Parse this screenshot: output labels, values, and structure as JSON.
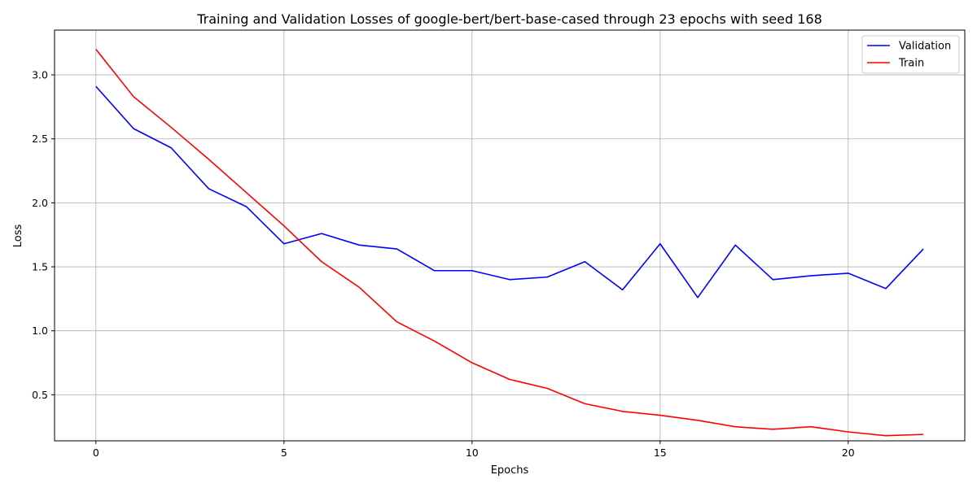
{
  "chart_data": {
    "type": "line",
    "title": "Training and Validation Losses of google-bert/bert-base-cased through 23 epochs with seed 168",
    "xlabel": "Epochs",
    "ylabel": "Loss",
    "xlim": [
      -1.1,
      23.1
    ],
    "ylim": [
      0.14,
      3.35
    ],
    "xticks": [
      0,
      5,
      10,
      15,
      20
    ],
    "yticks": [
      0.5,
      1.0,
      1.5,
      2.0,
      2.5,
      3.0
    ],
    "xtick_labels": [
      "0",
      "5",
      "10",
      "15",
      "20"
    ],
    "ytick_labels": [
      "0.5",
      "1.0",
      "1.5",
      "2.0",
      "2.5",
      "3.0"
    ],
    "grid": true,
    "legend_position": "top-right",
    "x": [
      0,
      1,
      2,
      3,
      4,
      5,
      6,
      7,
      8,
      9,
      10,
      11,
      12,
      13,
      14,
      15,
      16,
      17,
      18,
      19,
      20,
      21,
      22
    ],
    "series": [
      {
        "name": "Validation",
        "color": "#0000ff",
        "values": [
          2.91,
          2.58,
          2.43,
          2.11,
          1.97,
          1.68,
          1.76,
          1.67,
          1.64,
          1.47,
          1.47,
          1.4,
          1.42,
          1.54,
          1.32,
          1.68,
          1.26,
          1.67,
          1.4,
          1.43,
          1.45,
          1.33,
          1.64
        ]
      },
      {
        "name": "Train",
        "color": "#ff0000",
        "values": [
          3.2,
          2.83,
          2.59,
          2.34,
          2.08,
          1.82,
          1.54,
          1.34,
          1.07,
          0.92,
          0.75,
          0.62,
          0.55,
          0.43,
          0.37,
          0.34,
          0.3,
          0.25,
          0.23,
          0.25,
          0.21,
          0.18,
          0.19
        ]
      }
    ]
  }
}
